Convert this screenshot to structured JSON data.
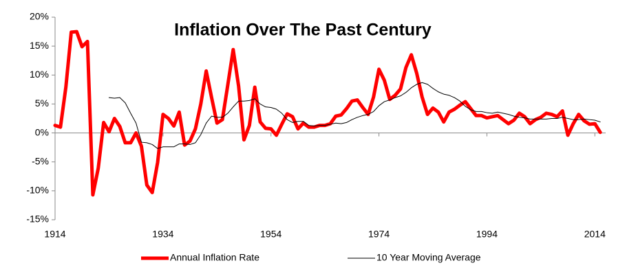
{
  "chart_data": {
    "type": "line",
    "title": "Inflation Over The Past Century",
    "x": [
      1914,
      1915,
      1916,
      1917,
      1918,
      1919,
      1920,
      1921,
      1922,
      1923,
      1924,
      1925,
      1926,
      1927,
      1928,
      1929,
      1930,
      1931,
      1932,
      1933,
      1934,
      1935,
      1936,
      1937,
      1938,
      1939,
      1940,
      1941,
      1942,
      1943,
      1944,
      1945,
      1946,
      1947,
      1948,
      1949,
      1950,
      1951,
      1952,
      1953,
      1954,
      1955,
      1956,
      1957,
      1958,
      1959,
      1960,
      1961,
      1962,
      1963,
      1964,
      1965,
      1966,
      1967,
      1968,
      1969,
      1970,
      1971,
      1972,
      1973,
      1974,
      1975,
      1976,
      1977,
      1978,
      1979,
      1980,
      1981,
      1982,
      1983,
      1984,
      1985,
      1986,
      1987,
      1988,
      1989,
      1990,
      1991,
      1992,
      1993,
      1994,
      1995,
      1996,
      1997,
      1998,
      1999,
      2000,
      2001,
      2002,
      2003,
      2004,
      2005,
      2006,
      2007,
      2008,
      2009,
      2010,
      2011,
      2012,
      2013,
      2014,
      2015
    ],
    "series": [
      {
        "name": "Annual Inflation Rate",
        "color": "#ff0000",
        "width": 5,
        "values": [
          1.3,
          1.0,
          7.9,
          17.4,
          17.5,
          14.9,
          15.8,
          -10.7,
          -6.1,
          1.8,
          0.2,
          2.5,
          1.1,
          -1.7,
          -1.7,
          0.0,
          -2.3,
          -9.0,
          -10.3,
          -5.1,
          3.2,
          2.5,
          1.2,
          3.6,
          -2.1,
          -1.4,
          0.7,
          5.0,
          10.7,
          6.1,
          1.7,
          2.3,
          8.3,
          14.4,
          8.1,
          -1.2,
          1.3,
          7.9,
          1.9,
          0.8,
          0.7,
          -0.4,
          1.5,
          3.3,
          2.8,
          0.7,
          1.7,
          1.0,
          1.0,
          1.3,
          1.3,
          1.6,
          2.9,
          3.1,
          4.2,
          5.5,
          5.7,
          4.4,
          3.2,
          6.2,
          11.0,
          9.1,
          5.8,
          6.5,
          7.6,
          11.3,
          13.5,
          10.3,
          6.2,
          3.2,
          4.3,
          3.6,
          1.9,
          3.6,
          4.1,
          4.8,
          5.4,
          4.2,
          3.0,
          3.0,
          2.6,
          2.8,
          3.0,
          2.3,
          1.6,
          2.2,
          3.4,
          2.8,
          1.6,
          2.3,
          2.7,
          3.4,
          3.2,
          2.8,
          3.8,
          -0.4,
          1.6,
          3.2,
          2.1,
          1.5,
          1.6,
          0.1
        ]
      },
      {
        "name": "10 Year Moving Average",
        "color": "#000000",
        "width": 1,
        "values": [
          null,
          null,
          null,
          null,
          null,
          null,
          null,
          null,
          null,
          null,
          6.1,
          6.0,
          6.1,
          5.2,
          3.4,
          1.7,
          -1.6,
          -1.7,
          -2.0,
          -2.7,
          -2.4,
          -2.4,
          -2.4,
          -1.9,
          -1.9,
          -2.0,
          -1.7,
          -0.3,
          1.7,
          2.9,
          2.7,
          2.7,
          3.4,
          4.5,
          5.5,
          5.5,
          5.6,
          5.9,
          5.0,
          4.5,
          4.4,
          4.1,
          3.4,
          2.3,
          1.8,
          2.0,
          2.0,
          1.3,
          1.2,
          1.3,
          1.3,
          1.5,
          1.7,
          1.6,
          1.8,
          2.3,
          2.7,
          3.0,
          3.2,
          3.7,
          4.7,
          5.4,
          5.7,
          6.1,
          6.4,
          7.0,
          7.8,
          8.4,
          8.7,
          8.4,
          7.7,
          7.1,
          6.7,
          6.5,
          6.1,
          5.5,
          4.6,
          4.0,
          3.7,
          3.7,
          3.5,
          3.4,
          3.6,
          3.4,
          3.2,
          2.9,
          2.7,
          2.6,
          2.4,
          2.4,
          2.4,
          2.4,
          2.5,
          2.5,
          2.7,
          2.5,
          2.3,
          2.3,
          2.4,
          2.3,
          2.2,
          1.9
        ]
      }
    ],
    "xlim": [
      1914,
      2016
    ],
    "xticks": [
      1914,
      1934,
      1954,
      1974,
      1994,
      2014
    ],
    "ylim": [
      -15,
      20
    ],
    "yticks": [
      {
        "value": -15,
        "label": "-15%"
      },
      {
        "value": -10,
        "label": "-10%"
      },
      {
        "value": -5,
        "label": "-5%"
      },
      {
        "value": 0,
        "label": "0%"
      },
      {
        "value": 5,
        "label": "5%"
      },
      {
        "value": 10,
        "label": "10%"
      },
      {
        "value": 15,
        "label": "15%"
      },
      {
        "value": 20,
        "label": "20%"
      }
    ],
    "legend": "bottom"
  }
}
